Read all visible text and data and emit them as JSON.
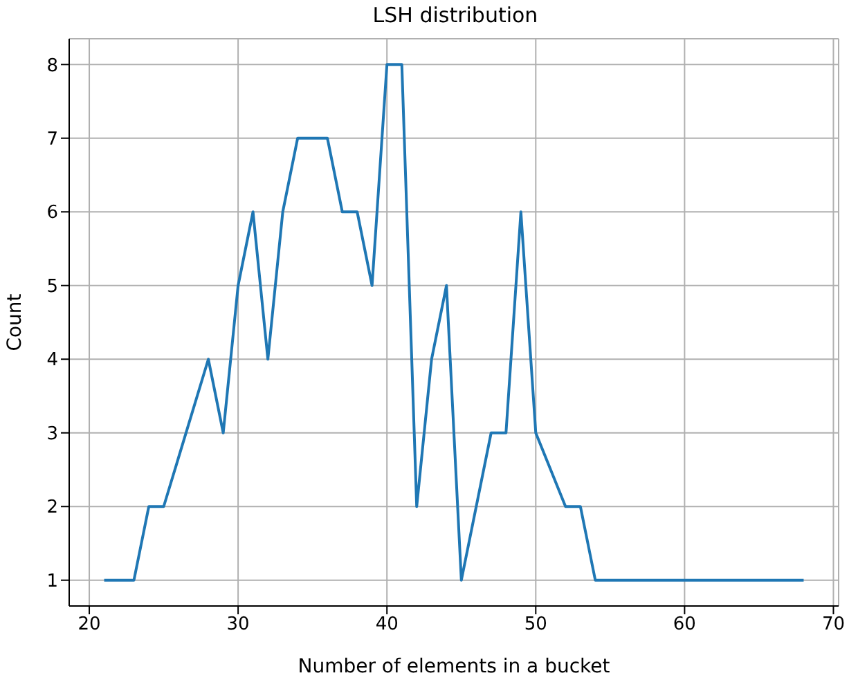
{
  "chart_data": {
    "type": "line",
    "title": "LSH distribution",
    "xlabel": "Number of elements in a bucket",
    "ylabel": "Count",
    "x": [
      21,
      23,
      24,
      25,
      28,
      29,
      30,
      31,
      32,
      33,
      34,
      36,
      37,
      38,
      39,
      40,
      41,
      42,
      43,
      44,
      45,
      47,
      48,
      49,
      50,
      52,
      53,
      54,
      68
    ],
    "series": [
      {
        "color": "#1f77b4",
        "values": [
          1,
          1,
          2,
          2,
          4,
          3,
          5,
          6,
          4,
          6,
          7,
          7,
          6,
          6,
          5,
          8,
          8,
          2,
          4,
          5,
          1,
          3,
          3,
          6,
          3,
          2,
          2,
          1,
          1
        ]
      }
    ],
    "xlim": [
      18.65,
      70.35
    ],
    "xticks": [
      20,
      30,
      40,
      50,
      60,
      70
    ],
    "ylim": [
      0.65,
      8.35
    ],
    "yticks": [
      1,
      2,
      3,
      4,
      5,
      6,
      7,
      8
    ],
    "grid": true,
    "legend": false,
    "marker": "none",
    "line_style": "solid"
  }
}
